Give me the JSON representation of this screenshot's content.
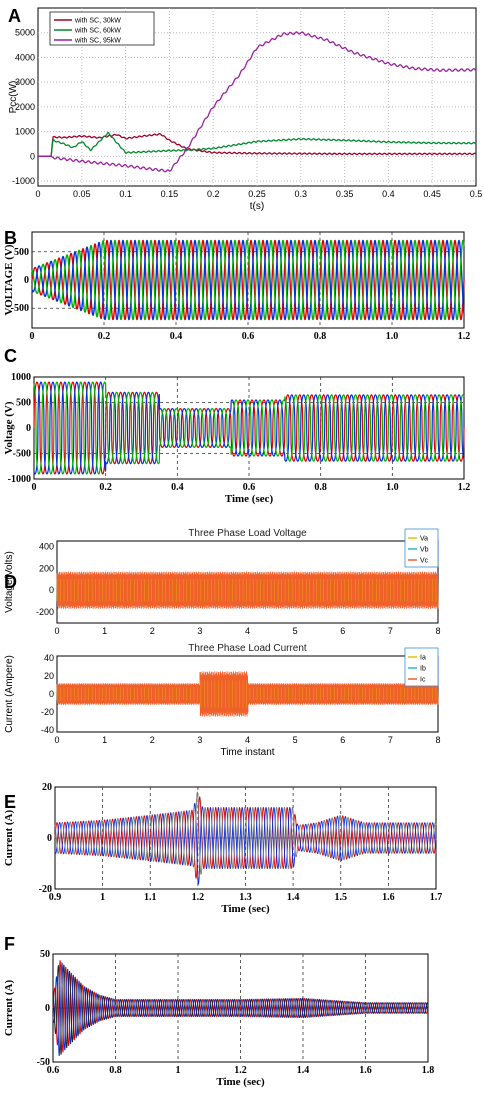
{
  "chart_data": [
    {
      "panel": "A",
      "type": "line",
      "xlabel": "t(s)",
      "ylabel": "Pcc(W)",
      "xlim": [
        0,
        0.5
      ],
      "ylim": [
        -1200,
        6000
      ],
      "xticks": [
        "0",
        "0.05",
        "0.1",
        "0.15",
        "0.2",
        "0.25",
        "0.3",
        "0.35",
        "0.4",
        "0.45",
        "0.5"
      ],
      "yticks": [
        "-1000",
        "0",
        "1000",
        "2000",
        "3000",
        "4000",
        "5000"
      ],
      "grid": true,
      "legend_position": "top-left",
      "series": [
        {
          "name": "with SC, 30kW",
          "color": "#a0002a",
          "x": [
            0,
            0.015,
            0.017,
            0.03,
            0.05,
            0.07,
            0.09,
            0.1,
            0.12,
            0.14,
            0.15,
            0.17,
            0.2,
            0.25,
            0.3,
            0.35,
            0.4,
            0.45,
            0.5
          ],
          "y": [
            0,
            0,
            780,
            760,
            820,
            750,
            880,
            720,
            820,
            900,
            650,
            300,
            150,
            120,
            110,
            100,
            100,
            100,
            100
          ]
        },
        {
          "name": "with SC, 60kW",
          "color": "#008a2e",
          "x": [
            0,
            0.015,
            0.017,
            0.03,
            0.04,
            0.05,
            0.06,
            0.08,
            0.1,
            0.12,
            0.15,
            0.17,
            0.2,
            0.25,
            0.3,
            0.35,
            0.4,
            0.45,
            0.5
          ],
          "y": [
            0,
            0,
            650,
            500,
            350,
            600,
            250,
            950,
            150,
            180,
            230,
            250,
            320,
            600,
            700,
            650,
            580,
            540,
            530
          ]
        },
        {
          "name": "with SC, 95kW",
          "color": "#9b1fa0",
          "x": [
            0,
            0.015,
            0.017,
            0.05,
            0.1,
            0.13,
            0.15,
            0.17,
            0.2,
            0.23,
            0.25,
            0.28,
            0.3,
            0.33,
            0.36,
            0.4,
            0.43,
            0.46,
            0.5
          ],
          "y": [
            0,
            0,
            -50,
            -200,
            -380,
            -520,
            -600,
            300,
            2000,
            3300,
            4400,
            4950,
            5000,
            4700,
            4200,
            3750,
            3550,
            3480,
            3500
          ]
        }
      ]
    },
    {
      "panel": "B",
      "type": "line",
      "ylabel": "VOLTAGE (V)",
      "xlim": [
        0,
        1.2
      ],
      "ylim": [
        -850,
        850
      ],
      "xticks": [
        "0",
        "0.2",
        "0.4",
        "0.6",
        "0.8",
        "1.0",
        "1.2"
      ],
      "yticks": [
        "500",
        "0",
        "-500"
      ],
      "phase_colors": [
        "#e00000",
        "#0030e0",
        "#00b000"
      ],
      "peak_final": 700,
      "cycles_per_unit": 30
    },
    {
      "panel": "C",
      "type": "line",
      "xlabel": "Time (sec)",
      "ylabel": "Voltage (V)",
      "xlim": [
        0,
        1.2
      ],
      "ylim": [
        -1000,
        1000
      ],
      "xticks": [
        "0",
        "0.2",
        "0.4",
        "0.6",
        "0.8",
        "1.0",
        "1.2"
      ],
      "yticks": [
        "1000",
        "500",
        "0",
        "-500",
        "-1000"
      ],
      "phase_colors": [
        "#e00000",
        "#0030e0",
        "#00b000"
      ],
      "cycles_per_unit": 30
    },
    {
      "panel": "D",
      "type": "line",
      "subplots": [
        {
          "title": "Three Phase Load Voltage",
          "ylabel": "Voltage(Volts)",
          "xlim": [
            0,
            8
          ],
          "ylim": [
            -300,
            450
          ],
          "xticks": [
            "0",
            "1",
            "2",
            "3",
            "4",
            "5",
            "6",
            "7",
            "8"
          ],
          "yticks": [
            "400",
            "200",
            "0",
            "-200"
          ],
          "legend": [
            "Va",
            "Vb",
            "Vc"
          ],
          "legend_position": "top-right",
          "colors": [
            "#e6c200",
            "#2fb6d8",
            "#f0602a"
          ],
          "amplitude": 170
        },
        {
          "title": "Three Phase Load Current",
          "xlabel": "Time instant",
          "ylabel": "Current (Ampere)",
          "xlim": [
            0,
            8
          ],
          "ylim": [
            -42,
            42
          ],
          "xticks": [
            "0",
            "1",
            "2",
            "3",
            "4",
            "5",
            "6",
            "7",
            "8"
          ],
          "yticks": [
            "40",
            "20",
            "0",
            "-20",
            "-40"
          ],
          "legend": [
            "Ia",
            "Ib",
            "Ic"
          ],
          "legend_position": "top-right",
          "colors": [
            "#e6c200",
            "#2fb6d8",
            "#f0602a"
          ],
          "amplitude": 12,
          "amplitude_3_to_4": 25
        }
      ]
    },
    {
      "panel": "E",
      "type": "line",
      "xlabel": "Time (sec)",
      "ylabel": "Current (A)",
      "xlim": [
        0.9,
        1.7
      ],
      "ylim": [
        -20,
        20
      ],
      "xticks": [
        "0.9",
        "1",
        "1.1",
        "1.2",
        "1.3",
        "1.4",
        "1.5",
        "1.6",
        "1.7"
      ],
      "yticks": [
        "20",
        "0",
        "-20"
      ],
      "phase_colors": [
        "#e00000",
        "#0030e0",
        "#7a7a7a"
      ],
      "envelope_t": [
        0.9,
        1.0,
        1.1,
        1.19,
        1.2,
        1.21,
        1.3,
        1.4,
        1.41,
        1.45,
        1.5,
        1.55,
        1.6,
        1.7
      ],
      "envelope_amp": [
        6,
        7,
        9,
        11,
        19,
        12,
        12,
        12,
        5,
        6,
        9,
        6,
        6,
        6
      ]
    },
    {
      "panel": "F",
      "type": "line",
      "xlabel": "Time (sec)",
      "ylabel": "Current (A)",
      "xlim": [
        0.6,
        1.8
      ],
      "ylim": [
        -50,
        50
      ],
      "xticks": [
        "0.6",
        "0.8",
        "1",
        "1.2",
        "1.4",
        "1.6",
        "1.8"
      ],
      "yticks": [
        "50",
        "0",
        "-50"
      ],
      "phase_colors": [
        "#e00000",
        "#0030e0",
        "#222222"
      ],
      "envelope_t": [
        0.6,
        0.62,
        0.65,
        0.7,
        0.75,
        0.8,
        1.0,
        1.2,
        1.4,
        1.6,
        1.8
      ],
      "envelope_amp": [
        10,
        45,
        35,
        20,
        12,
        8,
        8,
        8,
        9,
        5,
        5
      ]
    }
  ]
}
